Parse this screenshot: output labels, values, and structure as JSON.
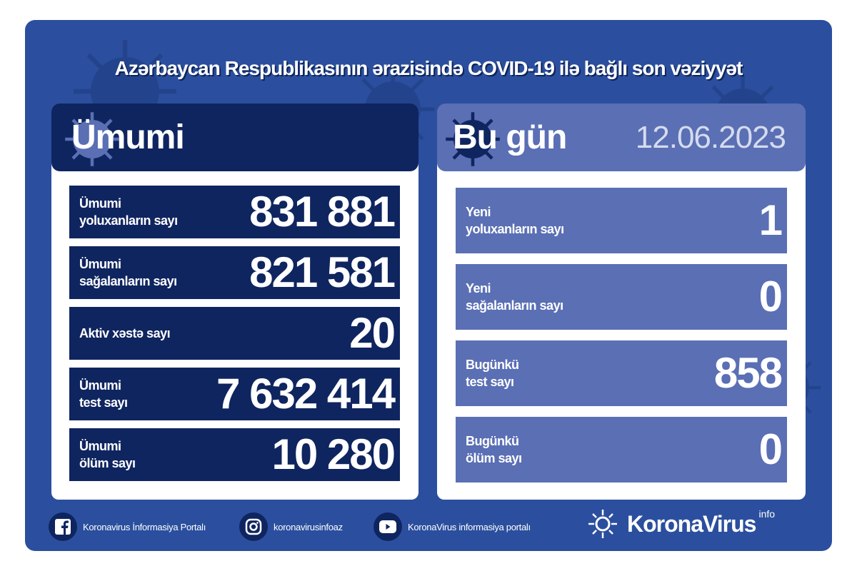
{
  "title": "Azərbaycan Respublikasının ərazisində COVID-19 ilə bağlı son vəziyyət",
  "left": {
    "heading": "Ümumi",
    "rows": [
      {
        "label1": "Ümumi",
        "label2": "yoluxanların sayı",
        "value": "831 881"
      },
      {
        "label1": "Ümumi",
        "label2": "sağalanların sayı",
        "value": "821 581"
      },
      {
        "label1": "Aktiv xəstə sayı",
        "label2": "",
        "value": "20"
      },
      {
        "label1": "Ümumi",
        "label2": "test sayı",
        "value": "7 632 414"
      },
      {
        "label1": "Ümumi",
        "label2": "ölüm sayı",
        "value": "10 280"
      }
    ]
  },
  "right": {
    "heading": "Bu gün",
    "date": "12.06.2023",
    "rows": [
      {
        "label1": "Yeni",
        "label2": "yoluxanların sayı",
        "value": "1"
      },
      {
        "label1": "Yeni",
        "label2": "sağalanların sayı",
        "value": "0"
      },
      {
        "label1": "Bugünkü",
        "label2": "test sayı",
        "value": "858"
      },
      {
        "label1": "Bugünkü",
        "label2": "ölüm sayı",
        "value": "0"
      }
    ]
  },
  "footer": {
    "facebook": "Koronavirus İnformasiya Portalı",
    "instagram": "koronavirusinfoaz",
    "youtube": "KoronaVirus informasiya portalı",
    "logo": "KoronaVirus",
    "logo_sup": "info"
  },
  "colors": {
    "background": "#2b4f9e",
    "navy": "#0f2560",
    "light_blue": "#5a6fb4"
  }
}
